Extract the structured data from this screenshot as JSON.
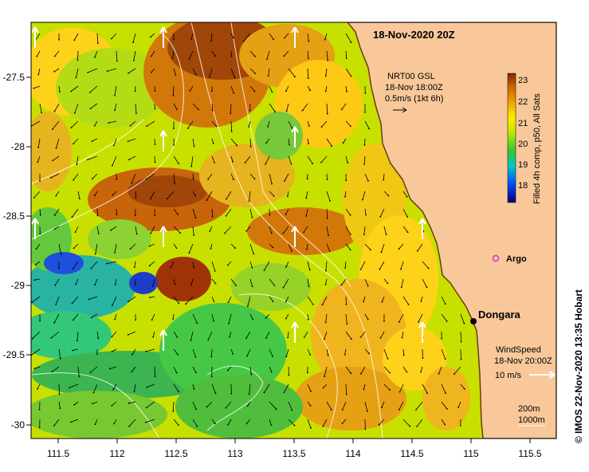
{
  "map": {
    "title": "18-Nov-2020 20Z",
    "colors": {
      "land": "#f8c89b",
      "coast": "#6b3a16",
      "bathymetry_contour": "#ffffff",
      "current_arrow": "#000000",
      "wind_arrow": "#ffffff",
      "argo_marker": "#d82cd8"
    },
    "x_ticks": [
      "111.5",
      "112",
      "112.5",
      "113",
      "113.5",
      "114",
      "114.5",
      "115",
      "115.5"
    ],
    "y_ticks": [
      "-27.5",
      "-28",
      "-28.5",
      "-29",
      "-29.5",
      "-30"
    ],
    "current_legend": {
      "line1": "NRT00 GSL",
      "line2": "18-Nov 18:00Z",
      "line3": "0.5m/s (1kt 6h)"
    },
    "wind_legend": {
      "line1": "WindSpeed",
      "line2": "18-Nov 20:00Z",
      "line3": "10 m/s"
    },
    "contour_legend": {
      "line1": "200m",
      "line2": "1000m"
    },
    "places": [
      {
        "name": "Dongara",
        "icon": "location-dot-icon"
      },
      {
        "name": "Argo",
        "icon": "argo-float-icon"
      }
    ],
    "colorbar": {
      "ticks": [
        "23",
        "22",
        "21",
        "20",
        "19",
        "18"
      ],
      "label": "Filled 4h comp, p50, All Sats",
      "range": [
        17.4,
        23.3
      ],
      "stops": [
        "#00007a",
        "#0050ff",
        "#00c8c8",
        "#32c832",
        "#c8e600",
        "#ffeb00",
        "#f0a000",
        "#c86400",
        "#7a2800"
      ]
    },
    "credit": "© IMOS 22-Nov-2020 13:35 Hobart"
  }
}
